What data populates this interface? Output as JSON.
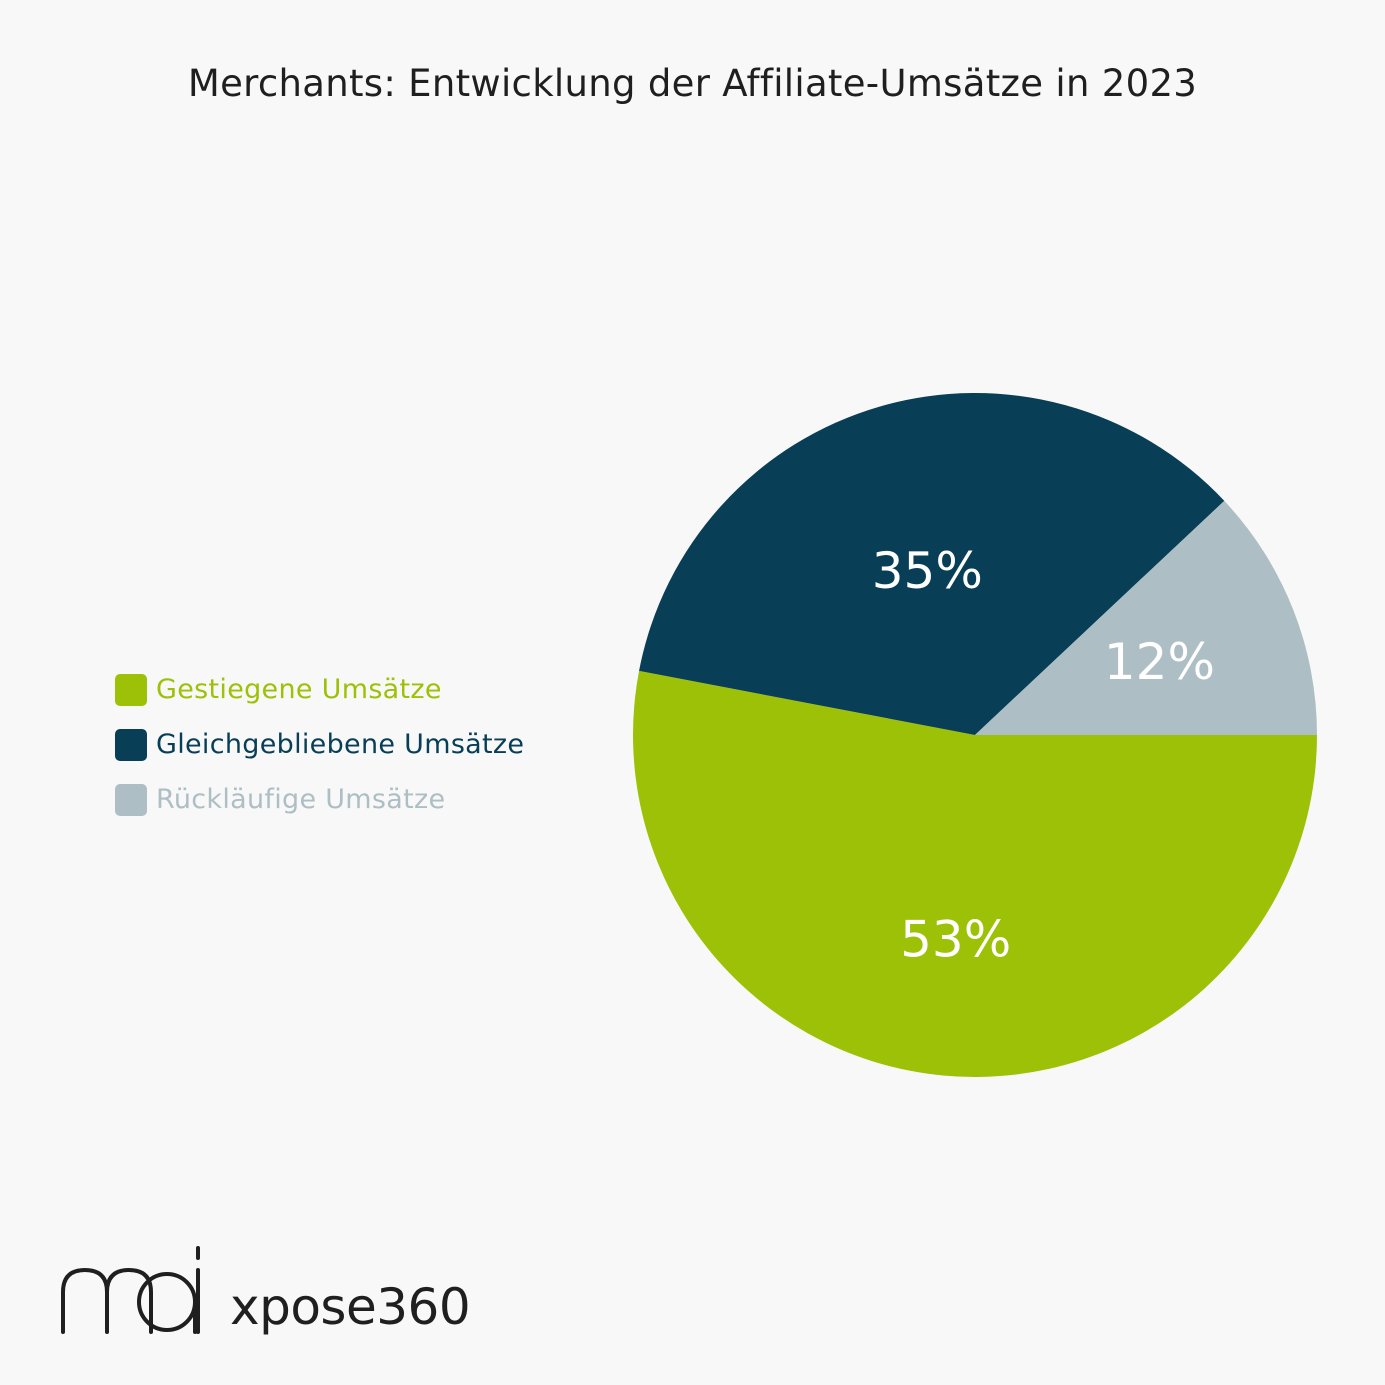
{
  "chart_data": {
    "type": "pie",
    "title": "Merchants: Entwicklung der Affiliate-Umsätze in 2023",
    "categories": [
      "Gestiegene Umsätze",
      "Gleichgebliebene Umsätze",
      "Rückläufige Umsätze"
    ],
    "values": [
      53,
      35,
      12
    ],
    "value_labels": [
      "53%",
      "35%",
      "12%"
    ],
    "colors": [
      "#9dc107",
      "#083e56",
      "#adbfc4"
    ],
    "legend_position": "left"
  },
  "colors": {
    "background": "#f8f8f8",
    "label_text": "#ffffff"
  },
  "logos": {
    "left_logo_text": "mai",
    "right_logo_text": "xpose360"
  }
}
